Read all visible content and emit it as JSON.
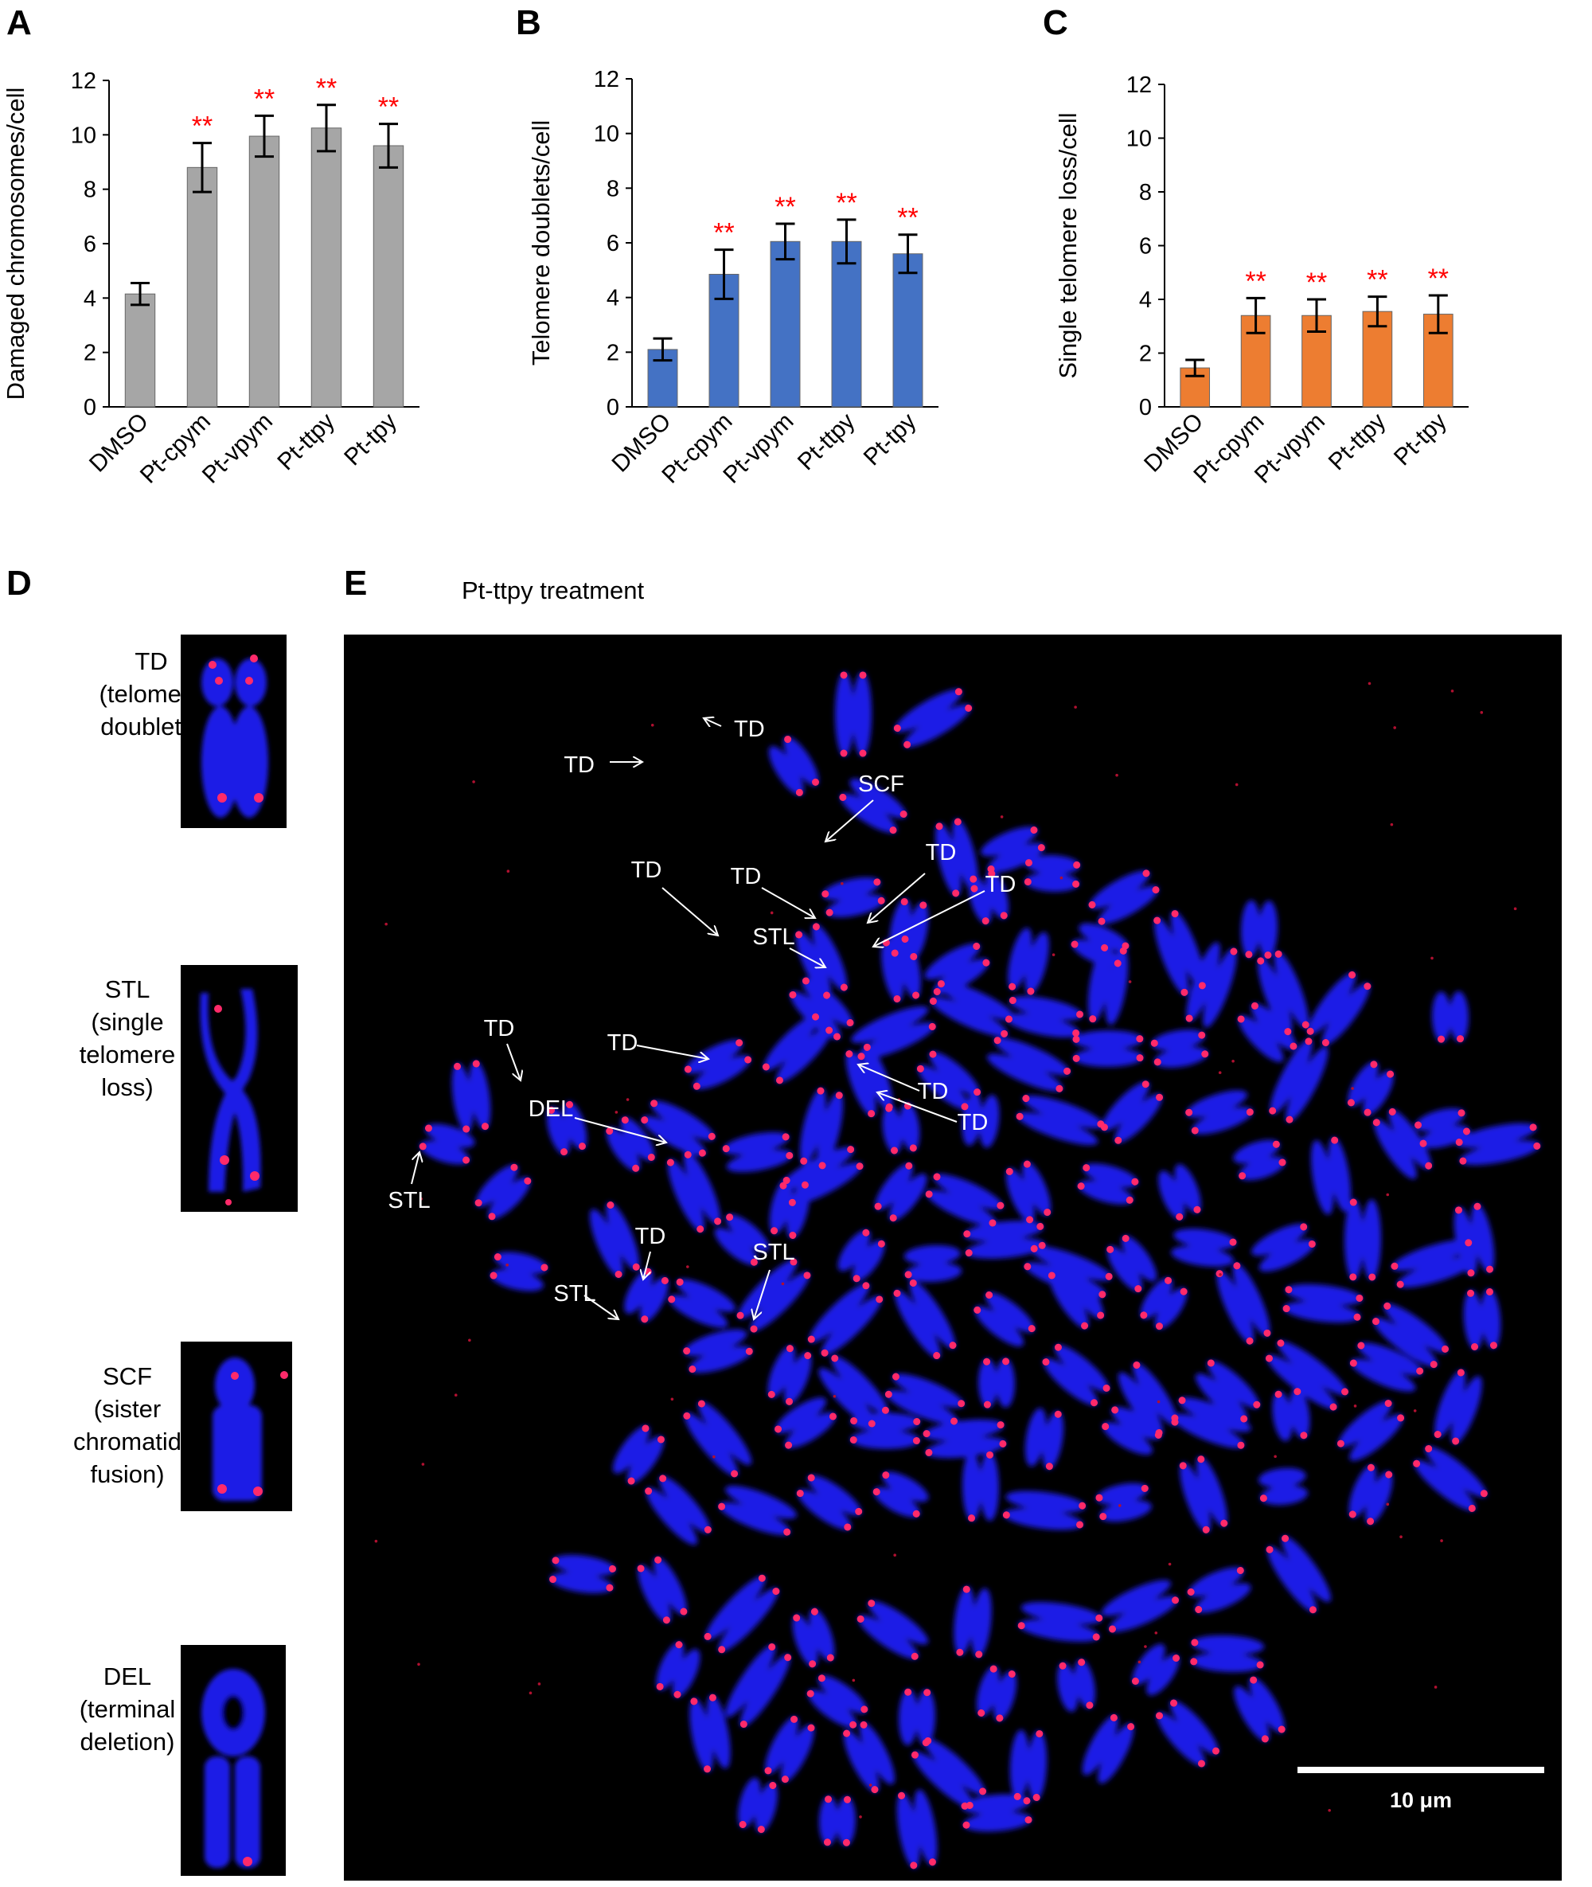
{
  "panels": {
    "a": "A",
    "b": "B",
    "c": "C",
    "d": "D",
    "e": "E"
  },
  "chart_data": [
    {
      "type": "bar",
      "panel": "A",
      "categories": [
        "DMSO",
        "Pt-cpym",
        "Pt-vpym",
        "Pt-ttpy",
        "Pt-tpy"
      ],
      "values": [
        4.15,
        8.8,
        9.95,
        10.25,
        9.6
      ],
      "errors": [
        0.4,
        0.9,
        0.75,
        0.85,
        0.8
      ],
      "significance": [
        "",
        "**",
        "**",
        "**",
        "**"
      ],
      "ylabel": "Damaged chromosomes/cell",
      "ylim": [
        0,
        12
      ],
      "yticks": [
        "0",
        "2",
        "4",
        "6",
        "8",
        "10",
        "12"
      ],
      "bar_color": "#a6a6a6",
      "star_color": "#ff0000"
    },
    {
      "type": "bar",
      "panel": "B",
      "categories": [
        "DMSO",
        "Pt-cpym",
        "Pt-vpym",
        "Pt-ttpy",
        "Pt-tpy"
      ],
      "values": [
        2.1,
        4.85,
        6.05,
        6.05,
        5.6
      ],
      "errors": [
        0.4,
        0.9,
        0.65,
        0.8,
        0.7
      ],
      "significance": [
        "",
        "**",
        "**",
        "**",
        "**"
      ],
      "ylabel": "Telomere doublets/cell",
      "ylim": [
        0,
        12
      ],
      "yticks": [
        "0",
        "2",
        "4",
        "6",
        "8",
        "10",
        "12"
      ],
      "bar_color": "#4472c4",
      "star_color": "#ff0000"
    },
    {
      "type": "bar",
      "panel": "C",
      "categories": [
        "DMSO",
        "Pt-cpym",
        "Pt-vpym",
        "Pt-ttpy",
        "Pt-tpy"
      ],
      "values": [
        1.45,
        3.4,
        3.4,
        3.55,
        3.45
      ],
      "errors": [
        0.3,
        0.65,
        0.6,
        0.55,
        0.7
      ],
      "significance": [
        "",
        "**",
        "**",
        "**",
        "**"
      ],
      "ylabel": "Single telomere loss/cell",
      "ylim": [
        0,
        12
      ],
      "yticks": [
        "0",
        "2",
        "4",
        "6",
        "8",
        "10",
        "12"
      ],
      "bar_color": "#ed7d31",
      "star_color": "#ff0000"
    }
  ],
  "insets": [
    {
      "line1": "TD",
      "line2": "(telomere",
      "line3": "doublets)",
      "line4": ""
    },
    {
      "line1": "STL",
      "line2": "(single",
      "line3": "telomere",
      "line4": "loss)"
    },
    {
      "line1": "SCF",
      "line2": "(sister",
      "line3": "chromatid",
      "line4": "fusion)"
    },
    {
      "line1": "DEL",
      "line2": "(terminal",
      "line3": "deletion)",
      "line4": ""
    }
  ],
  "micrograph": {
    "treatment": "Pt-ttpy treatment",
    "scale_bar_label": "10 μm",
    "annotations": [
      "TD",
      "TD",
      "SCF",
      "TD",
      "TD",
      "TD",
      "TD",
      "STL",
      "TD",
      "TD",
      "TD",
      "TD",
      "DEL",
      "STL",
      "TD",
      "STL",
      "STL"
    ]
  },
  "colors": {
    "chromosome": "#1f1fe6",
    "telomere": "#ff2a6a",
    "background": "#000000"
  }
}
